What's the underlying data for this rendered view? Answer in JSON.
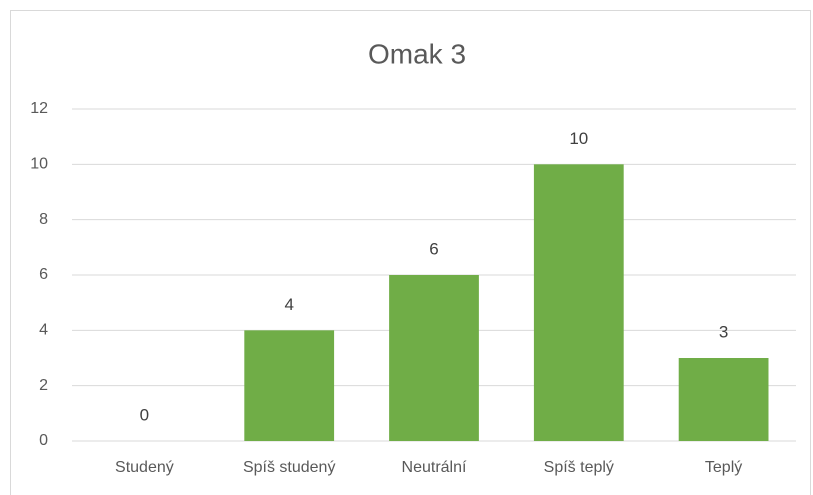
{
  "chart_data": {
    "type": "bar",
    "title": "Omak 3",
    "categories": [
      "Studený",
      "Spíš studený",
      "Neutrální",
      "Spíš teplý",
      "Teplý"
    ],
    "values": [
      0,
      4,
      6,
      10,
      3
    ],
    "color": "#70ad47",
    "ylim": [
      0,
      12
    ],
    "yticks": [
      0,
      2,
      4,
      6,
      8,
      10,
      12
    ],
    "grid": true
  }
}
